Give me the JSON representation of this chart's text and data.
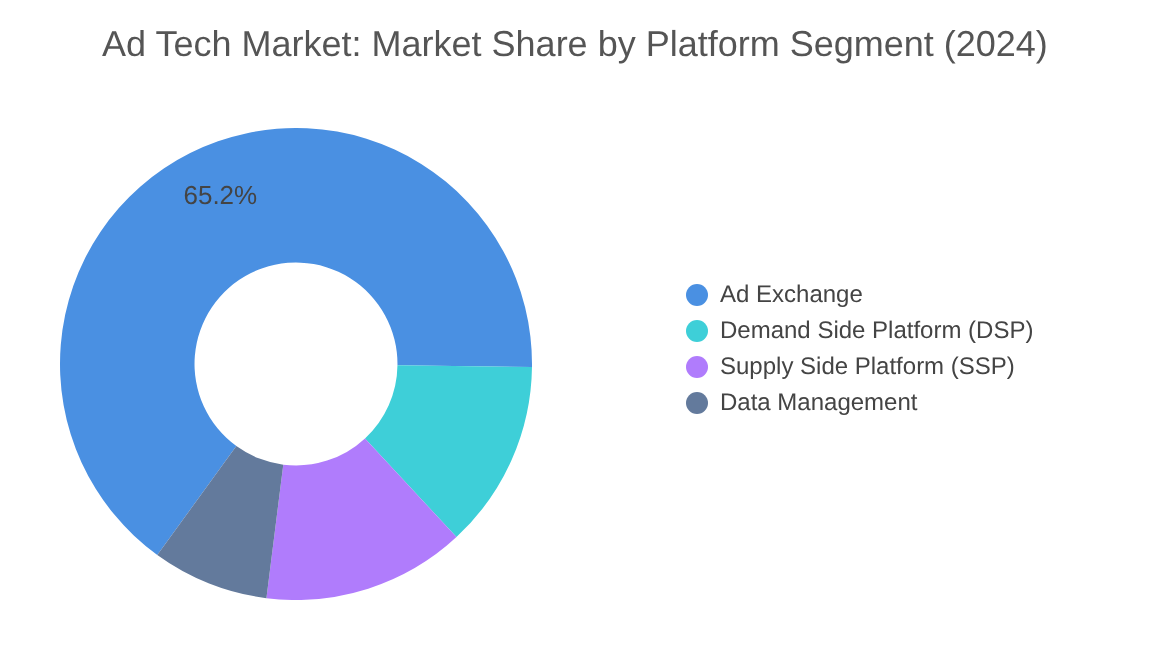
{
  "chart_data": {
    "type": "donut",
    "title": "Ad Tech Market: Market Share by Platform Segment (2024)",
    "categories": [
      "Ad Exchange",
      "Demand Side Platform (DSP)",
      "Supply Side Platform (SSP)",
      "Data Management"
    ],
    "values": [
      65.2,
      12.9,
      13.9,
      8.0
    ],
    "colors": [
      "#4a90e2",
      "#3ecfd8",
      "#b07cfc",
      "#637a9c"
    ],
    "value_labels": [
      "65.2%",
      null,
      null,
      null
    ],
    "legend": "right"
  }
}
